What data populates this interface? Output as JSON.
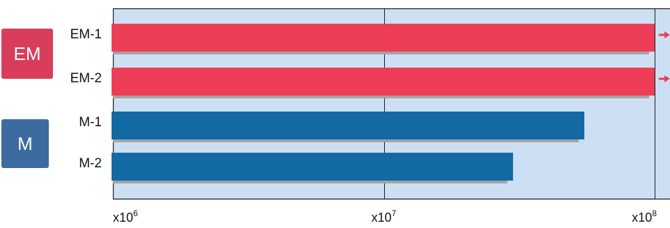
{
  "colors": {
    "plot_bg": "#cde0f3",
    "grid": "#1a1a1a",
    "shadow": "#a3a3a3",
    "em": "#ee3d57",
    "m": "#1369a1",
    "badge_em": "#d83e5c",
    "badge_m": "#3d6a9f"
  },
  "groups": [
    {
      "label": "EM",
      "color_key": "badge_em"
    },
    {
      "label": "M",
      "color_key": "badge_m"
    }
  ],
  "chart_data": {
    "type": "bar",
    "orientation": "horizontal",
    "scale": "log",
    "xlim": [
      1000000,
      100000000
    ],
    "categories": [
      "EM-1",
      "EM-2",
      "M-1",
      "M-2"
    ],
    "values": [
      100000000,
      100000000,
      55000000,
      30000000
    ],
    "exceeds_axis": [
      true,
      true,
      false,
      false
    ],
    "ticks": [
      {
        "base": "x10",
        "exp": "6",
        "value": 1000000
      },
      {
        "base": "x10",
        "exp": "7",
        "value": 10000000
      },
      {
        "base": "x10",
        "exp": "8",
        "value": 100000000
      }
    ],
    "grid": true,
    "title": "",
    "xlabel": "",
    "ylabel": ""
  }
}
